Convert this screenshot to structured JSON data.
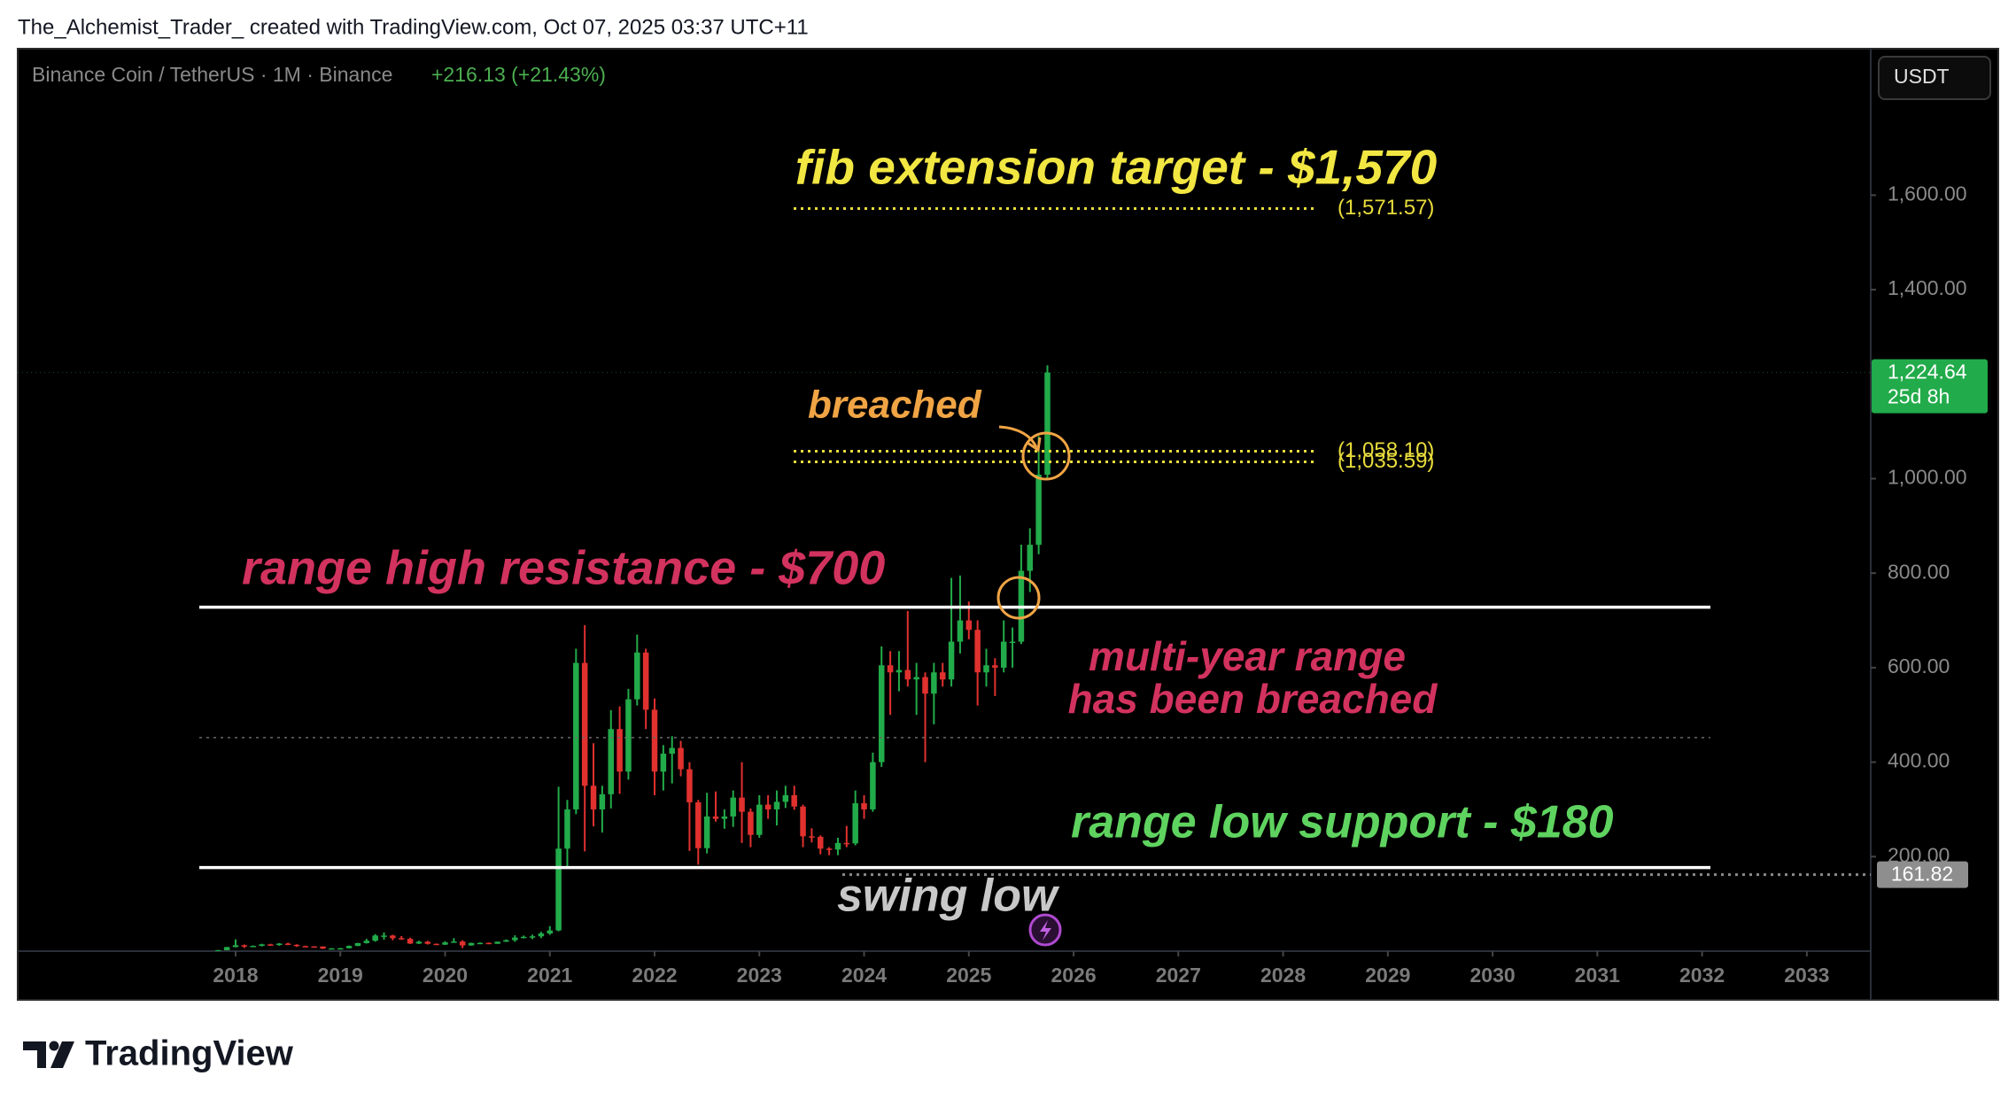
{
  "header": "The_Alchemist_Trader_ created with TradingView.com, Oct 07, 2025 03:37 UTC+11",
  "footer": "TradingView",
  "chart_data": {
    "type": "candlestick",
    "symbol": "Binance Coin / TetherUS · 1M · Binance",
    "change_label": "+216.13 (+21.43%)",
    "currency": "USDT",
    "up_color": "#22ab4a",
    "down_color": "#e0312f",
    "x": [
      "2017-11",
      "2017-12",
      "2018-01",
      "2018-02",
      "2018-03",
      "2018-04",
      "2018-05",
      "2018-06",
      "2018-07",
      "2018-08",
      "2018-09",
      "2018-10",
      "2018-11",
      "2018-12",
      "2019-01",
      "2019-02",
      "2019-03",
      "2019-04",
      "2019-05",
      "2019-06",
      "2019-07",
      "2019-08",
      "2019-09",
      "2019-10",
      "2019-11",
      "2019-12",
      "2020-01",
      "2020-02",
      "2020-03",
      "2020-04",
      "2020-05",
      "2020-06",
      "2020-07",
      "2020-08",
      "2020-09",
      "2020-10",
      "2020-11",
      "2020-12",
      "2021-01",
      "2021-02",
      "2021-03",
      "2021-04",
      "2021-05",
      "2021-06",
      "2021-07",
      "2021-08",
      "2021-09",
      "2021-10",
      "2021-11",
      "2021-12",
      "2022-01",
      "2022-02",
      "2022-03",
      "2022-04",
      "2022-05",
      "2022-06",
      "2022-07",
      "2022-08",
      "2022-09",
      "2022-10",
      "2022-11",
      "2022-12",
      "2023-01",
      "2023-02",
      "2023-03",
      "2023-04",
      "2023-05",
      "2023-06",
      "2023-07",
      "2023-08",
      "2023-09",
      "2023-10",
      "2023-11",
      "2023-12",
      "2024-01",
      "2024-02",
      "2024-03",
      "2024-04",
      "2024-05",
      "2024-06",
      "2024-07",
      "2024-08",
      "2024-09",
      "2024-10",
      "2024-11",
      "2024-12",
      "2025-01",
      "2025-02",
      "2025-03",
      "2025-04",
      "2025-05",
      "2025-06",
      "2025-07",
      "2025-08",
      "2025-09",
      "2025-10"
    ],
    "open": [
      1.9,
      2.0,
      8.6,
      12.5,
      9.6,
      11.2,
      14.3,
      12.9,
      16,
      13.4,
      10.7,
      10,
      9.8,
      5.4,
      6,
      6.1,
      11,
      17,
      22,
      33,
      33,
      27.5,
      26,
      16,
      20,
      15.5,
      13.7,
      18.5,
      20.3,
      12.1,
      17.3,
      17.5,
      15.6,
      20,
      23.2,
      28.8,
      30.3,
      31.4,
      37.4,
      43.8,
      217,
      300,
      610,
      350,
      300,
      332,
      470,
      380,
      533,
      632,
      511,
      380,
      418,
      430,
      385,
      315,
      218,
      285,
      280,
      285,
      325,
      295,
      246,
      310,
      300,
      316,
      330,
      306,
      243,
      242,
      217,
      215,
      229,
      228,
      313,
      300,
      400,
      605,
      590,
      595,
      575,
      580,
      545,
      590,
      575,
      655,
      700,
      680,
      590,
      605,
      600,
      655,
      655,
      805,
      860,
      1008.51
    ],
    "high": [
      2.5,
      9,
      25,
      14,
      12,
      15.6,
      15.6,
      17,
      17.8,
      14.5,
      11.5,
      10.5,
      9.9,
      6.2,
      6.8,
      12,
      17.6,
      26,
      36,
      39.6,
      34.6,
      32,
      28.5,
      22,
      21.7,
      16.2,
      20.9,
      27.5,
      23,
      17.8,
      18.5,
      18.3,
      20.3,
      24.9,
      33.4,
      33,
      34.8,
      41,
      53,
      348,
      320,
      640,
      690,
      440,
      350,
      510,
      518,
      555,
      670,
      640,
      535,
      436,
      455,
      445,
      400,
      320,
      335,
      338,
      300,
      340,
      400,
      302,
      330,
      330,
      340,
      350,
      350,
      310,
      260,
      245,
      220,
      240,
      265,
      340,
      330,
      420,
      645,
      635,
      635,
      720,
      610,
      590,
      610,
      610,
      790,
      795,
      740,
      700,
      640,
      620,
      700,
      685,
      860,
      895,
      1090,
      1240
    ],
    "low": [
      1.5,
      1.9,
      8,
      6.5,
      8.5,
      10,
      11.5,
      11.5,
      12.5,
      9,
      8.8,
      9,
      4.5,
      4.2,
      5.2,
      5.9,
      10.6,
      16,
      20,
      24.5,
      23,
      24,
      15.2,
      15,
      14,
      12.8,
      13.2,
      18.5,
      6.4,
      11.5,
      15,
      14.8,
      15.3,
      19.4,
      19.7,
      27,
      25.5,
      27.5,
      34.5,
      42,
      180,
      290,
      211,
      264,
      251,
      302,
      333,
      363,
      520,
      470,
      330,
      340,
      355,
      370,
      212,
      183,
      207,
      274,
      259,
      263,
      229,
      220,
      240,
      280,
      266,
      303,
      299,
      220,
      230,
      205,
      203,
      203,
      220,
      224,
      280,
      295,
      390,
      500,
      550,
      560,
      500,
      400,
      480,
      560,
      560,
      630,
      660,
      520,
      560,
      540,
      590,
      600,
      650,
      760,
      840,
      1000
    ],
    "close": [
      2.0,
      8.6,
      12.5,
      9.6,
      11.2,
      14.3,
      12.9,
      16,
      13.4,
      10.7,
      10,
      9.8,
      5.4,
      6,
      6.1,
      11,
      17,
      22,
      33,
      33,
      27.5,
      26,
      16,
      20,
      15.5,
      13.7,
      18.5,
      20.3,
      12.1,
      17.3,
      17.5,
      15.6,
      20,
      23.2,
      28.8,
      30.3,
      31.4,
      37.4,
      43.8,
      217,
      300,
      610,
      350,
      300,
      332,
      470,
      380,
      533,
      632,
      511,
      380,
      418,
      430,
      385,
      315,
      218,
      285,
      280,
      285,
      325,
      295,
      246,
      310,
      300,
      316,
      330,
      306,
      243,
      242,
      217,
      215,
      229,
      228,
      313,
      300,
      400,
      605,
      590,
      595,
      575,
      580,
      545,
      590,
      575,
      655,
      700,
      680,
      590,
      605,
      600,
      655,
      655,
      805,
      860,
      1008.51,
      1224.64
    ],
    "xlim": [
      2015.92,
      2033.61
    ],
    "xticks": [
      2018,
      2019,
      2020,
      2021,
      2022,
      2023,
      2024,
      2025,
      2026,
      2027,
      2028,
      2029,
      2030,
      2031,
      2032,
      2033
    ],
    "ylim": [
      0,
      1910
    ],
    "yticks": [
      {
        "value": 200,
        "label": "200.00"
      },
      {
        "value": 400,
        "label": "400.00"
      },
      {
        "value": 600,
        "label": "600.00"
      },
      {
        "value": 800,
        "label": "800.00"
      },
      {
        "value": 1000,
        "label": "1,000.00"
      },
      {
        "value": 1400,
        "label": "1,400.00"
      },
      {
        "value": 1600,
        "label": "1,600.00"
      }
    ],
    "last_price": {
      "value": 1224.64,
      "label": "1,224.64"
    },
    "countdown": "25d 8h",
    "levels": [
      {
        "value": 1571.57,
        "label": "(1,571.57)",
        "style": "dotted",
        "color": "#e8dc3c"
      },
      {
        "value": 1058.1,
        "label": "(1,058.10)",
        "style": "dotted",
        "color": "#e8dc3c"
      },
      {
        "value": 1035.59,
        "label": "(1,035.59)",
        "style": "dotted",
        "color": "#e8dc3c"
      },
      {
        "value": 728,
        "style": "solid",
        "color": "#ffffff"
      },
      {
        "value": 452,
        "style": "dotted",
        "color": "#6a6a6a"
      },
      {
        "value": 177,
        "style": "solid",
        "color": "#ffffff"
      },
      {
        "value": 161.82,
        "label": "161.82",
        "style": "dotted",
        "color": "#8a8a8a"
      }
    ],
    "annotations": [
      "fib extension target - $1,570",
      "breached",
      "range high resistance - $700",
      "multi-year range",
      "has been breached",
      "range low support - $180",
      "swing low"
    ]
  }
}
